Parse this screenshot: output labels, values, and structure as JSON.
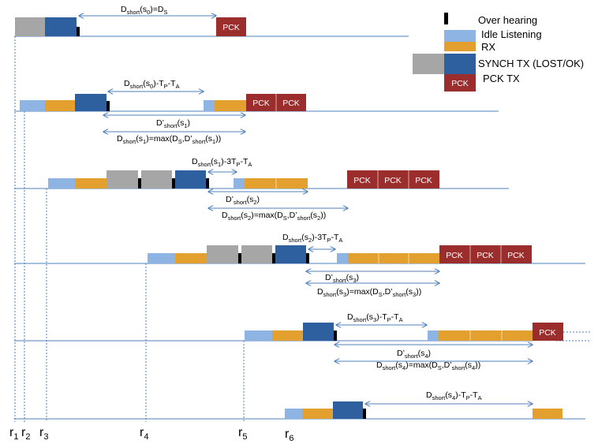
{
  "colors": {
    "line": "#4f81bd",
    "idle": "#8db4e2",
    "rx": "#e3a02e",
    "lost": "#a6a6a6",
    "synch": "#2e5f9e",
    "pck": "#9b2d2d",
    "overhearing": "#000000"
  },
  "legend": {
    "overhearing": "Over hearing",
    "idle": "Idle Listening",
    "rx": "RX",
    "synch": "SYNCH TX (LOST/OK)",
    "pck": "PCK TX"
  },
  "pck_label": "PCK",
  "row_markers": [
    "r",
    "r",
    "r",
    "r",
    "r",
    "r"
  ],
  "row_marker_subs": [
    "1",
    "2",
    "3",
    "4",
    "5",
    "6"
  ],
  "annotations": [
    {
      "id": "a0",
      "parts": [
        [
          "D",
          0
        ],
        [
          "short",
          1
        ],
        [
          "(s",
          0
        ],
        [
          "0",
          1
        ],
        [
          ")=D",
          0
        ],
        [
          "S",
          1
        ]
      ]
    },
    {
      "id": "a1",
      "parts": [
        [
          "D",
          0
        ],
        [
          "short",
          1
        ],
        [
          "(s",
          0
        ],
        [
          "0",
          1
        ],
        [
          ")-T",
          0
        ],
        [
          "P",
          1
        ],
        [
          "-T",
          0
        ],
        [
          "A",
          1
        ]
      ]
    },
    {
      "id": "a2",
      "parts": [
        [
          "D’",
          0
        ],
        [
          "short",
          1
        ],
        [
          "(s",
          0
        ],
        [
          "1",
          1
        ],
        [
          ")",
          0
        ]
      ]
    },
    {
      "id": "a3",
      "parts": [
        [
          "D",
          0
        ],
        [
          "short",
          1
        ],
        [
          "(s",
          0
        ],
        [
          "1",
          1
        ],
        [
          ")=max(D",
          0
        ],
        [
          "S",
          1
        ],
        [
          ",D’",
          0
        ],
        [
          "short",
          1
        ],
        [
          "(s",
          0
        ],
        [
          "1",
          1
        ],
        [
          "))",
          0
        ]
      ]
    },
    {
      "id": "a4",
      "parts": [
        [
          "D",
          0
        ],
        [
          "short",
          1
        ],
        [
          "(s",
          0
        ],
        [
          "1",
          1
        ],
        [
          ")-3T",
          0
        ],
        [
          "P",
          1
        ],
        [
          "-T",
          0
        ],
        [
          "A",
          1
        ]
      ]
    },
    {
      "id": "a5",
      "parts": [
        [
          "D’",
          0
        ],
        [
          "short",
          1
        ],
        [
          "(s",
          0
        ],
        [
          "2",
          1
        ],
        [
          ")",
          0
        ]
      ]
    },
    {
      "id": "a6",
      "parts": [
        [
          "D",
          0
        ],
        [
          "short",
          1
        ],
        [
          "(s",
          0
        ],
        [
          "2",
          1
        ],
        [
          ")=max(D",
          0
        ],
        [
          "S",
          1
        ],
        [
          ",D’",
          0
        ],
        [
          "short",
          1
        ],
        [
          "(s",
          0
        ],
        [
          "2",
          1
        ],
        [
          "))",
          0
        ]
      ]
    },
    {
      "id": "a7",
      "parts": [
        [
          "D",
          0
        ],
        [
          "short",
          1
        ],
        [
          "(s",
          0
        ],
        [
          "2",
          1
        ],
        [
          ")-3T",
          0
        ],
        [
          "P",
          1
        ],
        [
          "-T",
          0
        ],
        [
          "A",
          1
        ]
      ]
    },
    {
      "id": "a8",
      "parts": [
        [
          "D’",
          0
        ],
        [
          "short",
          1
        ],
        [
          "(s",
          0
        ],
        [
          "3",
          1
        ],
        [
          ")",
          0
        ]
      ]
    },
    {
      "id": "a9",
      "parts": [
        [
          "D",
          0
        ],
        [
          "short",
          1
        ],
        [
          "(s",
          0
        ],
        [
          "3",
          1
        ],
        [
          ")=max(D",
          0
        ],
        [
          "S",
          1
        ],
        [
          ",D’",
          0
        ],
        [
          "short",
          1
        ],
        [
          "(s",
          0
        ],
        [
          "3",
          1
        ],
        [
          "))",
          0
        ]
      ]
    },
    {
      "id": "a10",
      "parts": [
        [
          "D",
          0
        ],
        [
          "short",
          1
        ],
        [
          "(s",
          0
        ],
        [
          "3",
          1
        ],
        [
          ")-T",
          0
        ],
        [
          "P",
          1
        ],
        [
          "-T",
          0
        ],
        [
          "A",
          1
        ]
      ]
    },
    {
      "id": "a11",
      "parts": [
        [
          "D’",
          0
        ],
        [
          "short",
          1
        ],
        [
          "(s",
          0
        ],
        [
          "4",
          1
        ],
        [
          ")",
          0
        ]
      ]
    },
    {
      "id": "a12",
      "parts": [
        [
          "D",
          0
        ],
        [
          "short",
          1
        ],
        [
          "(s",
          0
        ],
        [
          "4",
          1
        ],
        [
          ")=max(D",
          0
        ],
        [
          "S",
          1
        ],
        [
          ",D’",
          0
        ],
        [
          "short",
          1
        ],
        [
          "(s",
          0
        ],
        [
          "4",
          1
        ],
        [
          "))",
          0
        ]
      ]
    },
    {
      "id": "a13",
      "parts": [
        [
          "D",
          0
        ],
        [
          "short",
          1
        ],
        [
          "(s",
          0
        ],
        [
          "4",
          1
        ],
        [
          ")-T",
          0
        ],
        [
          "P",
          1
        ],
        [
          "-T",
          0
        ],
        [
          "A",
          1
        ]
      ]
    }
  ]
}
